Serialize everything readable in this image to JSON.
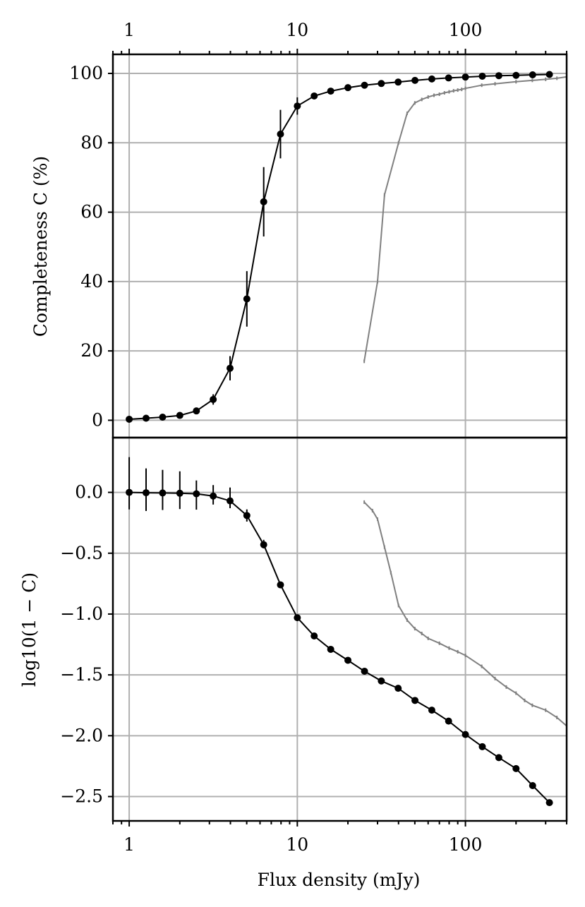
{
  "chart_data": [
    {
      "type": "line",
      "panel": "top",
      "ylabel": "Completeness C (%)",
      "xlabel": "",
      "xscale": "log",
      "xlim": [
        0.8,
        400
      ],
      "ylim": [
        -5,
        105.5
      ],
      "grid": true,
      "x_tick_labels": [
        "1",
        "10",
        "100"
      ],
      "y_tick_labels": [
        "0",
        "20",
        "40",
        "60",
        "80",
        "100"
      ],
      "y_ticks": [
        0,
        20,
        40,
        60,
        80,
        100
      ],
      "series": [
        {
          "color": "#000000",
          "marker": "dot",
          "x": [
            1.0,
            1.26,
            1.58,
            2.0,
            2.51,
            3.16,
            3.98,
            5.01,
            6.31,
            7.94,
            10.0,
            12.6,
            15.8,
            20.0,
            25.1,
            31.6,
            39.8,
            50.1,
            63.1,
            79.4,
            100,
            126,
            158,
            200,
            251,
            316
          ],
          "y": [
            0.3,
            0.6,
            0.9,
            1.4,
            2.7,
            6.0,
            15.0,
            35.0,
            63.0,
            82.5,
            90.6,
            93.5,
            94.9,
            95.9,
            96.6,
            97.1,
            97.5,
            98.0,
            98.4,
            98.7,
            98.95,
            99.2,
            99.35,
            99.45,
            99.6,
            99.7
          ],
          "yerr": [
            0,
            0,
            0,
            0,
            0,
            1.5,
            3.5,
            8,
            10,
            7,
            2.5,
            0,
            0,
            0,
            0,
            0,
            0,
            0,
            0,
            0,
            0,
            0,
            0,
            0,
            0,
            0
          ]
        },
        {
          "color": "#808080",
          "marker": "small-tick",
          "x": [
            25,
            30,
            33,
            40,
            45,
            50,
            55,
            60,
            65,
            70,
            75,
            80,
            85,
            90,
            95,
            100,
            125,
            150,
            200,
            250,
            300,
            350,
            400
          ],
          "y": [
            17,
            40,
            65,
            80,
            88.5,
            91.5,
            92.5,
            93.2,
            93.7,
            94.0,
            94.4,
            94.7,
            95.0,
            95.2,
            95.4,
            95.7,
            96.6,
            97.0,
            97.6,
            98.0,
            98.3,
            98.6,
            99.0
          ]
        }
      ]
    },
    {
      "type": "line",
      "panel": "bottom",
      "ylabel": "log10(1 − C)",
      "xlabel": "Flux density (mJy)",
      "xscale": "log",
      "xlim": [
        0.8,
        400
      ],
      "ylim": [
        -2.7,
        0.45
      ],
      "grid": true,
      "x_tick_labels": [
        "1",
        "10",
        "100"
      ],
      "y_tick_labels": [
        "0.0",
        "−0.5",
        "−1.0",
        "−1.5",
        "−2.0",
        "−2.5"
      ],
      "y_ticks": [
        0.0,
        -0.5,
        -1.0,
        -1.5,
        -2.0,
        -2.5
      ],
      "series": [
        {
          "color": "#000000",
          "marker": "dot",
          "x": [
            1.0,
            1.26,
            1.58,
            2.0,
            2.51,
            3.16,
            3.98,
            5.01,
            6.31,
            7.94,
            10.0,
            12.6,
            15.8,
            20.0,
            25.1,
            31.6,
            39.8,
            50.1,
            63.1,
            79.4,
            100,
            126,
            158,
            200,
            251,
            316
          ],
          "y": [
            0.0,
            -0.003,
            -0.005,
            -0.007,
            -0.012,
            -0.03,
            -0.07,
            -0.19,
            -0.43,
            -0.76,
            -1.03,
            -1.18,
            -1.29,
            -1.38,
            -1.47,
            -1.55,
            -1.61,
            -1.71,
            -1.79,
            -1.88,
            -1.99,
            -2.09,
            -2.18,
            -2.27,
            -2.41,
            -2.55
          ],
          "yerr_low": [
            0.14,
            0.15,
            0.14,
            0.13,
            0.13,
            0.07,
            0.06,
            0.05,
            0.03,
            0,
            0,
            0,
            0,
            0,
            0,
            0,
            0,
            0,
            0,
            0,
            0,
            0,
            0,
            0,
            0,
            0
          ],
          "yerr_high": [
            0.29,
            0.2,
            0.19,
            0.18,
            0.11,
            0.09,
            0.11,
            0.05,
            0.04,
            0,
            0,
            0,
            0,
            0,
            0,
            0,
            0,
            0,
            0,
            0,
            0,
            0,
            0,
            0,
            0,
            0
          ]
        },
        {
          "color": "#808080",
          "marker": "small-tick",
          "x": [
            25,
            28,
            30,
            33,
            36,
            40,
            45,
            50,
            55,
            60,
            70,
            80,
            90,
            100,
            125,
            150,
            175,
            200,
            225,
            250,
            300,
            350,
            400
          ],
          "y": [
            -0.08,
            -0.15,
            -0.22,
            -0.45,
            -0.66,
            -0.93,
            -1.05,
            -1.12,
            -1.16,
            -1.2,
            -1.24,
            -1.28,
            -1.31,
            -1.34,
            -1.43,
            -1.53,
            -1.6,
            -1.65,
            -1.71,
            -1.75,
            -1.79,
            -1.85,
            -1.92
          ]
        }
      ]
    }
  ]
}
